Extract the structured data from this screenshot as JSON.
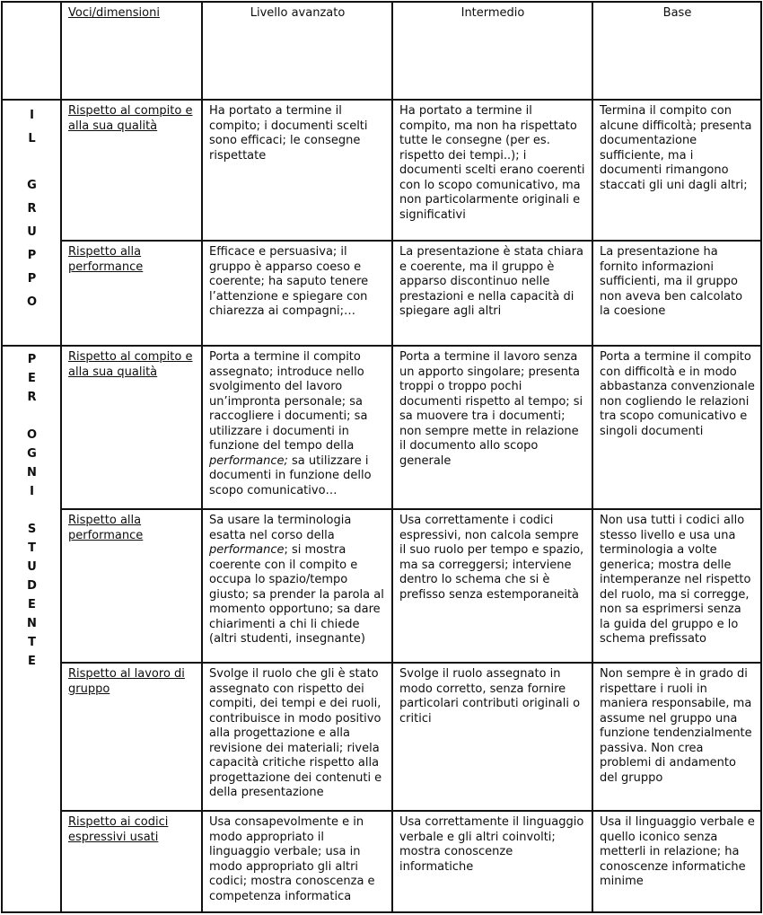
{
  "header": {
    "voci": "Voci/dimensioni",
    "levels": [
      "Livello avanzato",
      "Intermedio",
      "Base"
    ]
  },
  "groups": [
    {
      "label": "IL GRUPPO",
      "rows": [
        {
          "voce": "Rispetto al compito e alla sua qualità",
          "avanzato": "Ha  portato a termine il compito; i documenti scelti sono efficaci; le consegne rispettate",
          "intermedio": "Ha portato a termine il compito, ma non ha rispettato tutte le consegne (per es. rispetto dei tempi..); i documenti scelti erano coerenti con lo scopo comunicativo, ma non particolarmente originali e significativi",
          "base": "Termina il compito con alcune difficoltà; presenta documentazione sufficiente, ma i documenti rimangono staccati gli uni dagli altri;"
        },
        {
          "voce": "Rispetto alla performance",
          "avanzato": "Efficace e persuasiva; il gruppo è apparso coeso e coerente; ha saputo tenere l’attenzione e spiegare con chiarezza ai compagni;…",
          "intermedio": "La presentazione è stata chiara e coerente, ma il gruppo è apparso discontinuo nelle prestazioni e nella capacità di spiegare agli altri",
          "base": "La presentazione ha fornito informazioni sufficienti, ma il gruppo non aveva ben calcolato la coesione"
        }
      ]
    },
    {
      "label": "PER OGNI STUDENTE",
      "rows": [
        {
          "voce": "Rispetto al compito e alla sua qualità",
          "avanzato": "Porta a termine il compito assegnato; introduce nello svolgimento del lavoro un’impronta personale; sa raccogliere i documenti; sa utilizzare i  documenti in funzione del tempo della *performance;* sa utilizzare i documenti in funzione dello scopo comunicativo…",
          "intermedio": "Porta a termine il lavoro senza un apporto singolare; presenta troppi o troppo pochi documenti rispetto al tempo; si sa muovere tra i documenti; non sempre mette in relazione il documento allo scopo generale",
          "base": "Porta a termine il compito con difficoltà e in modo abbastanza convenzionale non cogliendo le relazioni tra scopo comunicativo e singoli documenti"
        },
        {
          "voce": "Rispetto alla performance",
          "avanzato": "Sa usare la terminologia esatta nel corso della *performance*; si mostra coerente con il compito e occupa lo spazio/tempo giusto; sa prender la parola al momento opportuno; sa dare chiarimenti a chi li chiede (altri studenti, insegnante)",
          "intermedio": "Usa correttamente i codici espressivi, non calcola sempre il suo ruolo per tempo e spazio, ma sa correggersi; interviene dentro lo schema che si è prefisso senza estemporaneità",
          "base": "Non usa tutti i codici allo stesso livello e usa una terminologia a volte generica; mostra delle intemperanze nel rispetto del ruolo, ma si corregge, non sa esprimersi senza la guida del gruppo e lo schema prefissato"
        },
        {
          "voce": "Rispetto al lavoro di gruppo",
          "avanzato": "Svolge il ruolo che gli è stato assegnato con rispetto dei compiti, dei tempi e dei ruoli, contribuisce in modo positivo alla progettazione e alla revisione dei materiali; rivela capacità critiche rispetto alla progettazione dei contenuti e della presentazione",
          "intermedio": "Svolge il ruolo assegnato in modo corretto, senza fornire particolari contributi originali o critici",
          "base": "Non sempre è in grado di rispettare i ruoli in maniera responsabile, ma assume nel gruppo una funzione tendenzialmente passiva. Non crea problemi di andamento del gruppo"
        },
        {
          "voce": "Rispetto ai codici espressivi usati",
          "avanzato": "Usa consapevolmente e in modo appropriato il linguaggio verbale; usa in modo appropriato gli altri codici; mostra conoscenza e competenza informatica",
          "intermedio": "Usa correttamente il linguaggio verbale e gli altri coinvolti; mostra conoscenze informatiche",
          "base": "Usa il linguaggio verbale e quello iconico senza metterli in relazione; ha conoscenze informatiche minime"
        }
      ]
    }
  ]
}
